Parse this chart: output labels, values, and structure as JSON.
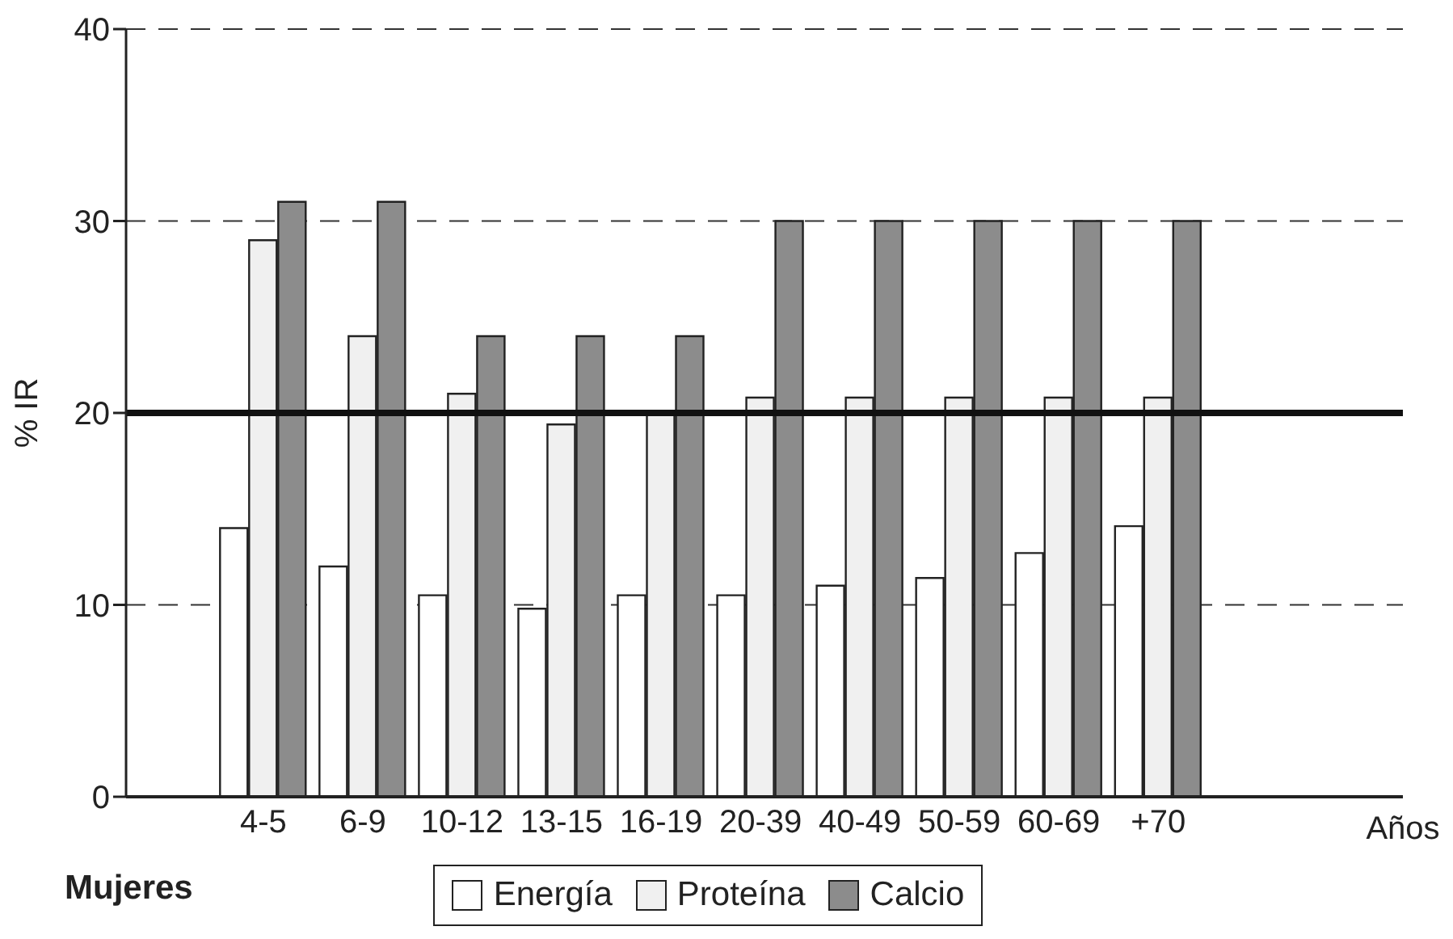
{
  "chart_data": {
    "type": "bar",
    "ylabel": "% IR",
    "xlabel": "Años",
    "categories": [
      "4-5",
      "6-9",
      "10-12",
      "13-15",
      "16-19",
      "20-39",
      "40-49",
      "50-59",
      "60-69",
      "+70"
    ],
    "series": [
      {
        "name": "Energía",
        "color": "#ffffff",
        "values": [
          14,
          12,
          10.5,
          9.8,
          10.5,
          10.5,
          11,
          11.4,
          12.7,
          14.1
        ]
      },
      {
        "name": "Proteína",
        "color": "#f0f0f0",
        "values": [
          29,
          24,
          21,
          19.4,
          20,
          20.8,
          20.8,
          20.8,
          20.8,
          20.8
        ]
      },
      {
        "name": "Calcio",
        "color": "#8c8c8c",
        "values": [
          31,
          31,
          24,
          24,
          24,
          30,
          30,
          30,
          30,
          30
        ]
      }
    ],
    "ylim": [
      0,
      40
    ],
    "yticks": [
      0,
      10,
      20,
      30,
      40
    ],
    "grid": "y",
    "legend": "bottom",
    "ref_lines": [
      {
        "axis": "y",
        "value": 20,
        "color": "#111111",
        "line_style": "solid"
      }
    ],
    "annotations": [
      "Mujeres"
    ]
  }
}
